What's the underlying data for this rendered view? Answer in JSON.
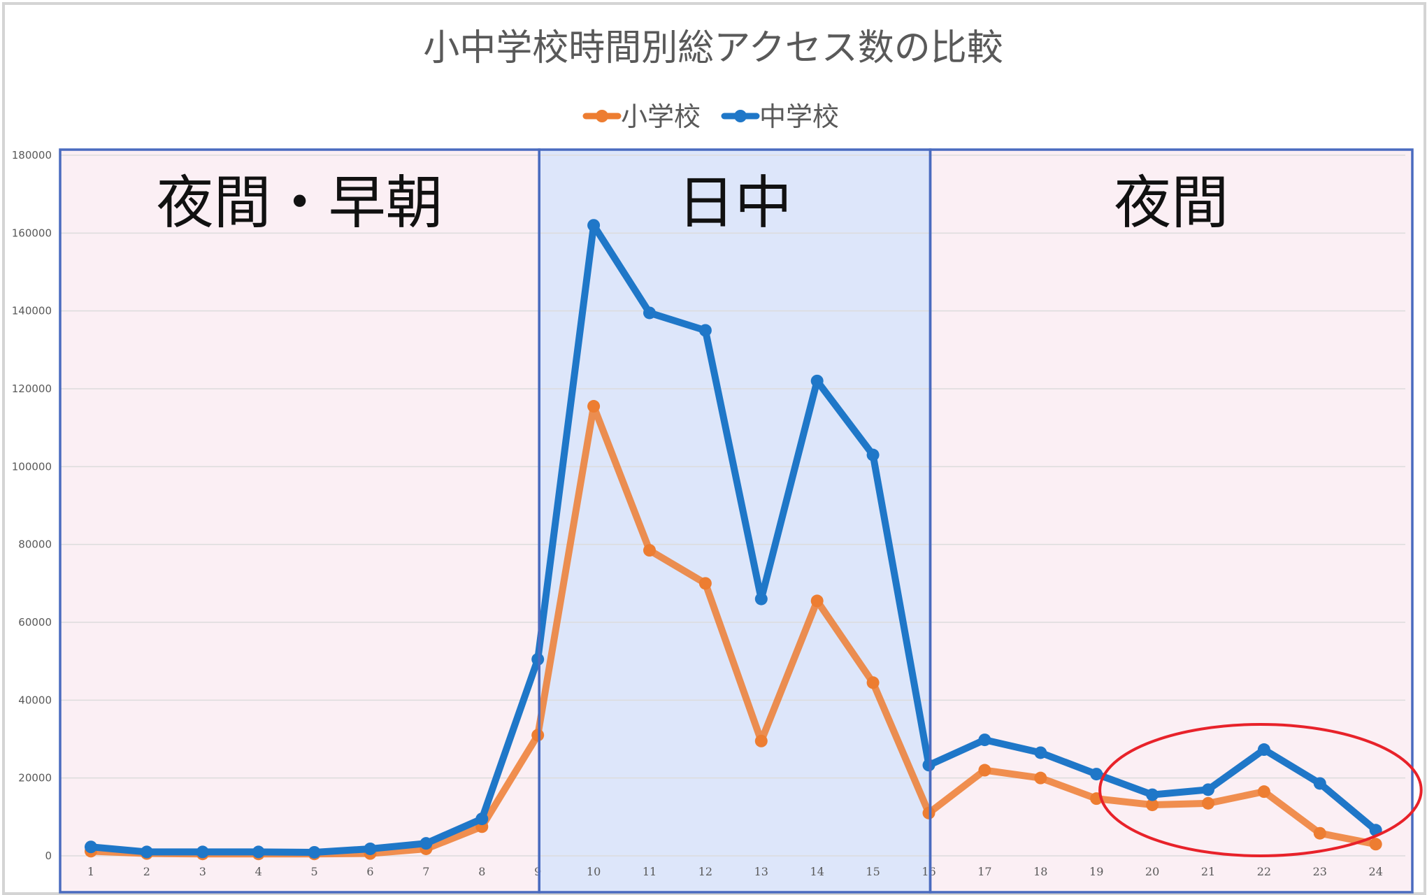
{
  "chart_data": {
    "type": "line",
    "title": "小中学校時間別総アクセス数の比較",
    "categories": [
      "1",
      "2",
      "3",
      "4",
      "5",
      "6",
      "7",
      "8",
      "9",
      "10",
      "11",
      "12",
      "13",
      "14",
      "15",
      "16",
      "17",
      "18",
      "19",
      "20",
      "21",
      "22",
      "23",
      "24"
    ],
    "series": [
      {
        "name": "小学校",
        "color": "#ED7D31",
        "values": [
          1200,
          600,
          500,
          500,
          500,
          600,
          1800,
          7500,
          31000,
          115500,
          78500,
          70000,
          29500,
          65500,
          44500,
          11000,
          22000,
          20000,
          14700,
          13100,
          13500,
          16500,
          5800,
          3000
        ]
      },
      {
        "name": "中学校",
        "color": "#1F77C8",
        "values": [
          2300,
          1000,
          1000,
          1000,
          900,
          1800,
          3200,
          9500,
          50500,
          162000,
          139500,
          135000,
          66000,
          122000,
          103000,
          23300,
          29800,
          26500,
          21000,
          15700,
          17000,
          27300,
          18600,
          6600
        ]
      }
    ],
    "ylim": [
      0,
      180000
    ],
    "yticks": [
      0,
      20000,
      40000,
      60000,
      80000,
      100000,
      120000,
      140000,
      160000,
      180000
    ],
    "grid": true,
    "legend": "top-center",
    "bands": [
      {
        "label": "夜間・早朝",
        "from": 1,
        "to": 9,
        "fill": "#FBEFF4"
      },
      {
        "label": "日中",
        "from": 9,
        "to": 16,
        "fill": "#DDE6FA"
      },
      {
        "label": "夜間",
        "from": 16,
        "to": 24,
        "fill": "#FBEFF4"
      }
    ],
    "highlight": {
      "from": 20,
      "to": 24,
      "color": "#E8222A"
    }
  }
}
